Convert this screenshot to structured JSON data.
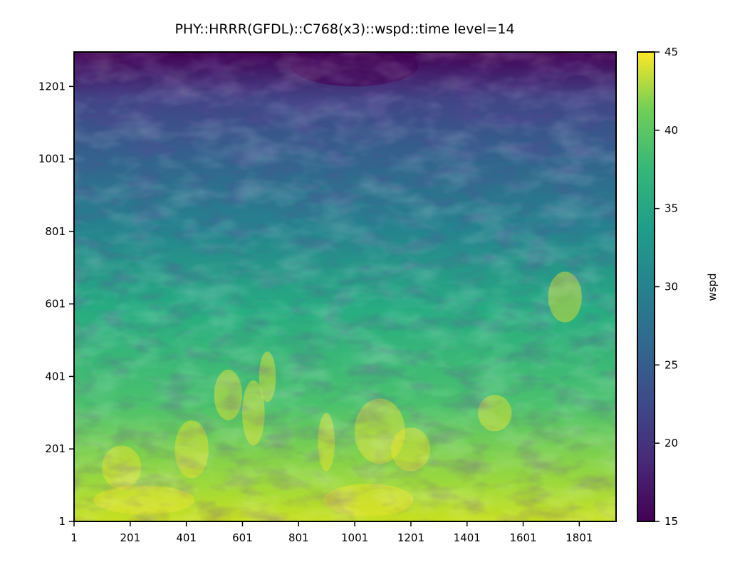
{
  "chart_data": {
    "type": "heatmap",
    "title": "PHY::HRRR(GFDL)::C768(x3)::wspd::time level=14",
    "xlabel": "",
    "ylabel": "",
    "x_ticks": [
      "1",
      "201",
      "401",
      "601",
      "801",
      "1001",
      "1201",
      "1401",
      "1601",
      "1801"
    ],
    "y_ticks": [
      "1",
      "201",
      "401",
      "601",
      "801",
      "1001",
      "1201"
    ],
    "xlim": [
      1,
      1932
    ],
    "ylim": [
      1,
      1296
    ],
    "colorbar": {
      "label": "wspd",
      "ticks": [
        "15",
        "20",
        "25",
        "30",
        "35",
        "40",
        "45"
      ],
      "range": [
        15,
        45
      ],
      "colormap": "viridis"
    },
    "field_summary": {
      "rows_y": [
        1,
        100,
        200,
        300,
        400,
        500,
        600,
        700,
        800,
        900,
        1000,
        1100,
        1200,
        1296
      ],
      "row_mean_wspd": [
        40,
        38,
        37,
        36,
        35,
        34,
        33,
        32,
        30,
        28,
        26,
        24,
        21,
        17
      ]
    },
    "grid": false,
    "legend": "none"
  }
}
